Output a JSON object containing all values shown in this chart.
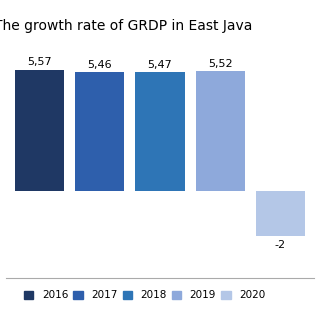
{
  "title": "The growth rate of GRDP in East Java",
  "years": [
    "2016",
    "2017",
    "2018",
    "2019",
    "2020"
  ],
  "values": [
    5.57,
    5.46,
    5.47,
    5.52,
    -2.07
  ],
  "bar_colors": [
    "#1F3864",
    "#2E5FAC",
    "#2E75B6",
    "#8EA9DB",
    "#B4C7E7"
  ],
  "label_values": [
    "5,57",
    "5,46",
    "5,47",
    "5,52",
    "-2"
  ],
  "ylim": [
    -4,
    7
  ],
  "title_fontsize": 10,
  "bar_label_fontsize": 8,
  "legend_fontsize": 7.5,
  "background_color": "#FFFFFF",
  "grid_color": "#CCCCCC"
}
